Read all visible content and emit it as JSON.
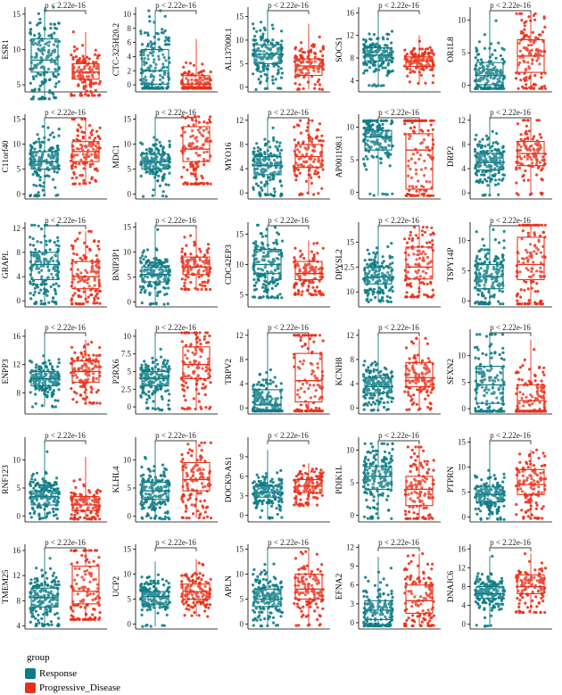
{
  "chart_data": [
    {
      "type": "box",
      "gene": "ESR1",
      "pvalue": "p < 2.22e-16",
      "ylim": [
        4,
        16
      ],
      "yticks": [
        5,
        10,
        15
      ],
      "groups": [
        {
          "name": "Response",
          "median": 8.5,
          "q1": 6.8,
          "q3": 11.5,
          "min": 3.0,
          "max": 16.0
        },
        {
          "name": "Progressive_Disease",
          "median": 6.8,
          "q1": 5.8,
          "q3": 8.0,
          "min": 3.5,
          "max": 12.5
        }
      ]
    },
    {
      "type": "box",
      "gene": "CTC-325H20.2",
      "pvalue": "p < 2.22e-16",
      "ylim": [
        -1,
        11
      ],
      "yticks": [
        0,
        2,
        4,
        6,
        8,
        10
      ],
      "groups": [
        {
          "name": "Response",
          "median": 2.0,
          "q1": 0.1,
          "q3": 5.0,
          "min": -0.5,
          "max": 10.5
        },
        {
          "name": "Progressive_Disease",
          "median": 0.1,
          "q1": -0.3,
          "q3": 1.3,
          "min": -0.5,
          "max": 6.5
        }
      ]
    },
    {
      "type": "box",
      "gene": "AL137000.1",
      "pvalue": "p < 2.22e-16",
      "ylim": [
        -1,
        17
      ],
      "yticks": [
        0,
        5,
        10,
        15
      ],
      "groups": [
        {
          "name": "Response",
          "median": 7.0,
          "q1": 5.0,
          "q3": 9.0,
          "min": -0.5,
          "max": 16.5
        },
        {
          "name": "Progressive_Disease",
          "median": 4.5,
          "q1": 2.5,
          "q3": 6.0,
          "min": -0.5,
          "max": 13.5
        }
      ]
    },
    {
      "type": "box",
      "gene": "SOCS1",
      "pvalue": "p < 2.22e-16",
      "ylim": [
        2,
        17
      ],
      "yticks": [
        4,
        8,
        12,
        16
      ],
      "groups": [
        {
          "name": "Response",
          "median": 8.5,
          "q1": 7.5,
          "q3": 9.8,
          "min": 3.0,
          "max": 16.0
        },
        {
          "name": "Progressive_Disease",
          "median": 7.5,
          "q1": 6.5,
          "q3": 8.2,
          "min": 3.5,
          "max": 12.0
        }
      ]
    },
    {
      "type": "box",
      "gene": "OR1L8",
      "pvalue": "p < 2.22e-16",
      "ylim": [
        -1,
        12
      ],
      "yticks": [
        0,
        5,
        10
      ],
      "groups": [
        {
          "name": "Response",
          "median": 1.5,
          "q1": 0.1,
          "q3": 3.5,
          "min": -0.5,
          "max": 11.0
        },
        {
          "name": "Progressive_Disease",
          "median": 4.5,
          "q1": 2.0,
          "q3": 7.0,
          "min": -0.5,
          "max": 11.0
        }
      ]
    },
    {
      "type": "box",
      "gene": "C11orf40",
      "pvalue": "p < 2.22e-16",
      "ylim": [
        -1,
        16
      ],
      "yticks": [
        0,
        5,
        10,
        15
      ],
      "groups": [
        {
          "name": "Response",
          "median": 6.5,
          "q1": 5.0,
          "q3": 8.5,
          "min": -0.5,
          "max": 15.0
        },
        {
          "name": "Progressive_Disease",
          "median": 8.5,
          "q1": 6.5,
          "q3": 10.5,
          "min": 2.0,
          "max": 15.0
        }
      ]
    },
    {
      "type": "box",
      "gene": "MDC1",
      "pvalue": "p < 2.22e-16",
      "ylim": [
        -1,
        16
      ],
      "yticks": [
        0,
        5,
        10,
        15
      ],
      "groups": [
        {
          "name": "Response",
          "median": 6.5,
          "q1": 5.0,
          "q3": 8.0,
          "min": -0.5,
          "max": 15.5
        },
        {
          "name": "Progressive_Disease",
          "median": 9.0,
          "q1": 6.5,
          "q3": 13.5,
          "min": 2.0,
          "max": 15.5
        }
      ]
    },
    {
      "type": "box",
      "gene": "MYO16",
      "pvalue": "p < 2.22e-16",
      "ylim": [
        -1,
        13
      ],
      "yticks": [
        0,
        4,
        8,
        12
      ],
      "groups": [
        {
          "name": "Response",
          "median": 4.5,
          "q1": 3.0,
          "q3": 6.0,
          "min": -0.5,
          "max": 12.5
        },
        {
          "name": "Progressive_Disease",
          "median": 6.0,
          "q1": 4.2,
          "q3": 8.0,
          "min": -0.3,
          "max": 12.0
        }
      ]
    },
    {
      "type": "box",
      "gene": "AP001198.1",
      "pvalue": "p < 2.22e-16",
      "ylim": [
        -1,
        12
      ],
      "yticks": [
        0,
        5,
        10
      ],
      "groups": [
        {
          "name": "Response",
          "median": 8.5,
          "q1": 6.5,
          "q3": 9.5,
          "min": -0.5,
          "max": 11.0
        },
        {
          "name": "Progressive_Disease",
          "median": 6.5,
          "q1": 0.5,
          "q3": 9.0,
          "min": -0.5,
          "max": 11.0
        }
      ]
    },
    {
      "type": "box",
      "gene": "DRP2",
      "pvalue": "p < 2.22e-16",
      "ylim": [
        -1,
        13
      ],
      "yticks": [
        0,
        4,
        8,
        12
      ],
      "groups": [
        {
          "name": "Response",
          "median": 5.0,
          "q1": 3.8,
          "q3": 6.5,
          "min": -0.5,
          "max": 12.0
        },
        {
          "name": "Progressive_Disease",
          "median": 6.5,
          "q1": 4.5,
          "q3": 8.5,
          "min": -0.3,
          "max": 12.0
        }
      ]
    },
    {
      "type": "box",
      "gene": "GRAPL",
      "pvalue": "p < 2.22e-16",
      "ylim": [
        -1,
        13
      ],
      "yticks": [
        0,
        4,
        8,
        12
      ],
      "groups": [
        {
          "name": "Response",
          "median": 6.0,
          "q1": 3.5,
          "q3": 8.0,
          "min": -0.5,
          "max": 12.5
        },
        {
          "name": "Progressive_Disease",
          "median": 4.0,
          "q1": 2.0,
          "q3": 6.5,
          "min": -0.5,
          "max": 11.5
        }
      ]
    },
    {
      "type": "box",
      "gene": "BNIP3P1",
      "pvalue": "p < 2.22e-16",
      "ylim": [
        -1,
        16
      ],
      "yticks": [
        0,
        5,
        10,
        15
      ],
      "groups": [
        {
          "name": "Response",
          "median": 5.5,
          "q1": 4.0,
          "q3": 7.0,
          "min": -0.5,
          "max": 14.5
        },
        {
          "name": "Progressive_Disease",
          "median": 7.0,
          "q1": 5.5,
          "q3": 9.0,
          "min": 2.5,
          "max": 14.5
        }
      ]
    },
    {
      "type": "box",
      "gene": "CDC42EP3",
      "pvalue": "p < 2.22e-16",
      "ylim": [
        3,
        17
      ],
      "yticks": [
        5,
        10,
        15
      ],
      "groups": [
        {
          "name": "Response",
          "median": 10.0,
          "q1": 8.5,
          "q3": 12.5,
          "min": 4.5,
          "max": 16.5
        },
        {
          "name": "Progressive_Disease",
          "median": 8.5,
          "q1": 7.5,
          "q3": 10.5,
          "min": 5.0,
          "max": 14.0
        }
      ]
    },
    {
      "type": "box",
      "gene": "DPYSL2",
      "pvalue": "p < 2.22e-16",
      "ylim": [
        8.5,
        17
      ],
      "yticks": [
        10.0,
        12.5,
        15.0
      ],
      "groups": [
        {
          "name": "Response",
          "median": 11.5,
          "q1": 10.8,
          "q3": 12.5,
          "min": 9.0,
          "max": 16.5
        },
        {
          "name": "Progressive_Disease",
          "median": 12.5,
          "q1": 11.3,
          "q3": 14.5,
          "min": 9.5,
          "max": 16.5
        }
      ]
    },
    {
      "type": "box",
      "gene": "TSPY14P",
      "pvalue": "p < 2.22e-16",
      "ylim": [
        -1,
        13
      ],
      "yticks": [
        0,
        5,
        10
      ],
      "groups": [
        {
          "name": "Response",
          "median": 4.0,
          "q1": 2.0,
          "q3": 6.0,
          "min": -0.5,
          "max": 12.0
        },
        {
          "name": "Progressive_Disease",
          "median": 6.0,
          "q1": 3.5,
          "q3": 10.5,
          "min": -0.5,
          "max": 12.5
        }
      ]
    },
    {
      "type": "box",
      "gene": "ENPP3",
      "pvalue": "p < 2.22e-16",
      "ylim": [
        5,
        17
      ],
      "yticks": [
        8,
        12,
        16
      ],
      "groups": [
        {
          "name": "Response",
          "median": 10.0,
          "q1": 9.0,
          "q3": 11.0,
          "min": 6.0,
          "max": 16.0
        },
        {
          "name": "Progressive_Disease",
          "median": 11.0,
          "q1": 9.5,
          "q3": 12.5,
          "min": 6.5,
          "max": 15.5
        }
      ]
    },
    {
      "type": "box",
      "gene": "P2RX6",
      "pvalue": "p < 2.22e-16",
      "ylim": [
        -1,
        11
      ],
      "yticks": [
        0,
        2.5,
        5.0,
        7.5,
        10.0
      ],
      "groups": [
        {
          "name": "Response",
          "median": 4.0,
          "q1": 3.0,
          "q3": 5.0,
          "min": -0.5,
          "max": 10.5
        },
        {
          "name": "Progressive_Disease",
          "median": 6.0,
          "q1": 4.0,
          "q3": 8.5,
          "min": -0.3,
          "max": 10.5
        }
      ]
    },
    {
      "type": "box",
      "gene": "TRPV2",
      "pvalue": "p < 2.22e-16",
      "ylim": [
        -1,
        13
      ],
      "yticks": [
        0,
        4,
        8,
        12
      ],
      "groups": [
        {
          "name": "Response",
          "median": 0.5,
          "q1": -0.3,
          "q3": 3.0,
          "min": -0.5,
          "max": 12.0
        },
        {
          "name": "Progressive_Disease",
          "median": 4.5,
          "q1": 1.0,
          "q3": 9.0,
          "min": -0.5,
          "max": 12.0
        }
      ]
    },
    {
      "type": "box",
      "gene": "KCNH8",
      "pvalue": "p < 2.22e-16",
      "ylim": [
        -1,
        13
      ],
      "yticks": [
        0,
        4,
        8,
        12
      ],
      "groups": [
        {
          "name": "Response",
          "median": 3.5,
          "q1": 2.5,
          "q3": 5.0,
          "min": -0.5,
          "max": 12.0
        },
        {
          "name": "Progressive_Disease",
          "median": 5.0,
          "q1": 3.5,
          "q3": 7.5,
          "min": -0.3,
          "max": 11.5
        }
      ]
    },
    {
      "type": "box",
      "gene": "SFXN2",
      "pvalue": "p < 2.22e-16",
      "ylim": [
        -1,
        15
      ],
      "yticks": [
        0,
        5,
        10
      ],
      "groups": [
        {
          "name": "Response",
          "median": 4.5,
          "q1": 1.0,
          "q3": 8.0,
          "min": -0.5,
          "max": 14.0
        },
        {
          "name": "Progressive_Disease",
          "median": 1.5,
          "q1": -0.3,
          "q3": 4.5,
          "min": -0.5,
          "max": 13.0
        }
      ]
    },
    {
      "type": "box",
      "gene": "RNF123",
      "pvalue": "p < 2.22e-16",
      "ylim": [
        -1,
        14
      ],
      "yticks": [
        0,
        5,
        10
      ],
      "groups": [
        {
          "name": "Response",
          "median": 3.5,
          "q1": 2.0,
          "q3": 4.5,
          "min": -0.5,
          "max": 13.0
        },
        {
          "name": "Progressive_Disease",
          "median": 2.0,
          "q1": 1.0,
          "q3": 3.5,
          "min": -0.5,
          "max": 10.5
        }
      ]
    },
    {
      "type": "box",
      "gene": "KLHL4",
      "pvalue": "p < 2.22e-16",
      "ylim": [
        -1,
        14
      ],
      "yticks": [
        0,
        5,
        10
      ],
      "groups": [
        {
          "name": "Response",
          "median": 4.5,
          "q1": 3.0,
          "q3": 6.0,
          "min": -0.5,
          "max": 13.0
        },
        {
          "name": "Progressive_Disease",
          "median": 6.5,
          "q1": 4.5,
          "q3": 9.5,
          "min": -0.3,
          "max": 13.0
        }
      ]
    },
    {
      "type": "box",
      "gene": "DOCK9-AS1",
      "pvalue": "p < 2.22e-16",
      "ylim": [
        -1,
        12
      ],
      "yticks": [
        0,
        3,
        6,
        9
      ],
      "groups": [
        {
          "name": "Response",
          "median": 3.5,
          "q1": 2.8,
          "q3": 4.5,
          "min": -0.5,
          "max": 10.0
        },
        {
          "name": "Progressive_Disease",
          "median": 4.5,
          "q1": 3.5,
          "q3": 5.5,
          "min": 1.5,
          "max": 8.0
        }
      ]
    },
    {
      "type": "box",
      "gene": "PDIK1L",
      "pvalue": "p < 2.22e-16",
      "ylim": [
        -1,
        12
      ],
      "yticks": [
        0,
        5,
        10
      ],
      "groups": [
        {
          "name": "Response",
          "median": 6.0,
          "q1": 4.0,
          "q3": 7.5,
          "min": -0.5,
          "max": 11.0
        },
        {
          "name": "Progressive_Disease",
          "median": 4.0,
          "q1": 1.5,
          "q3": 6.0,
          "min": -0.5,
          "max": 10.5
        }
      ]
    },
    {
      "type": "box",
      "gene": "PTPRN",
      "pvalue": "p < 2.22e-16",
      "ylim": [
        -1,
        16
      ],
      "yticks": [
        0,
        5,
        10,
        15
      ],
      "groups": [
        {
          "name": "Response",
          "median": 4.5,
          "q1": 3.0,
          "q3": 6.0,
          "min": -0.5,
          "max": 15.0
        },
        {
          "name": "Progressive_Disease",
          "median": 6.5,
          "q1": 4.5,
          "q3": 9.5,
          "min": -0.3,
          "max": 13.5
        }
      ]
    },
    {
      "type": "box",
      "gene": "TMEM25",
      "pvalue": "p < 2.22e-16",
      "ylim": [
        3.5,
        17
      ],
      "yticks": [
        4,
        8,
        12,
        16
      ],
      "groups": [
        {
          "name": "Response",
          "median": 8.5,
          "q1": 7.0,
          "q3": 10.0,
          "min": 4.0,
          "max": 16.0
        },
        {
          "name": "Progressive_Disease",
          "median": 9.5,
          "q1": 7.5,
          "q3": 13.5,
          "min": 5.0,
          "max": 16.0
        }
      ]
    },
    {
      "type": "box",
      "gene": "UCP2",
      "pvalue": "p < 2.22e-16",
      "ylim": [
        -1,
        16
      ],
      "yticks": [
        0,
        5,
        10,
        15
      ],
      "groups": [
        {
          "name": "Response",
          "median": 5.5,
          "q1": 4.0,
          "q3": 6.5,
          "min": -0.5,
          "max": 12.5
        },
        {
          "name": "Progressive_Disease",
          "median": 6.5,
          "q1": 5.0,
          "q3": 8.0,
          "min": 1.5,
          "max": 13.0
        }
      ]
    },
    {
      "type": "box",
      "gene": "APLN",
      "pvalue": "p < 2.22e-16",
      "ylim": [
        -1,
        16
      ],
      "yticks": [
        0,
        5,
        10,
        15
      ],
      "groups": [
        {
          "name": "Response",
          "median": 5.0,
          "q1": 3.5,
          "q3": 7.0,
          "min": -0.5,
          "max": 14.5
        },
        {
          "name": "Progressive_Disease",
          "median": 7.0,
          "q1": 5.0,
          "q3": 10.0,
          "min": -0.3,
          "max": 14.5
        }
      ]
    },
    {
      "type": "box",
      "gene": "EFNA2",
      "pvalue": "p < 2.22e-16",
      "ylim": [
        -1,
        12.5
      ],
      "yticks": [
        0,
        3,
        6,
        9,
        12
      ],
      "groups": [
        {
          "name": "Response",
          "median": 2.0,
          "q1": 0.5,
          "q3": 3.5,
          "min": -0.5,
          "max": 10.5
        },
        {
          "name": "Progressive_Disease",
          "median": 3.5,
          "q1": 1.5,
          "q3": 6.0,
          "min": -0.5,
          "max": 11.0
        }
      ]
    },
    {
      "type": "box",
      "gene": "DNAJC6",
      "pvalue": "p < 2.22e-16",
      "ylim": [
        -1,
        17
      ],
      "yticks": [
        0,
        4,
        8,
        12,
        16
      ],
      "groups": [
        {
          "name": "Response",
          "median": 6.5,
          "q1": 5.5,
          "q3": 8.0,
          "min": -0.5,
          "max": 14.5
        },
        {
          "name": "Progressive_Disease",
          "median": 8.0,
          "q1": 6.5,
          "q3": 10.5,
          "min": 2.5,
          "max": 15.0
        }
      ]
    }
  ],
  "legend": {
    "title": "group",
    "items": [
      {
        "label": "Response",
        "color": "#0e7c86"
      },
      {
        "label": "Progressive_Disease",
        "color": "#e8311a"
      }
    ]
  },
  "colors": {
    "response": "#0e7c86",
    "progressive": "#e8311a",
    "axis": "#000000"
  }
}
